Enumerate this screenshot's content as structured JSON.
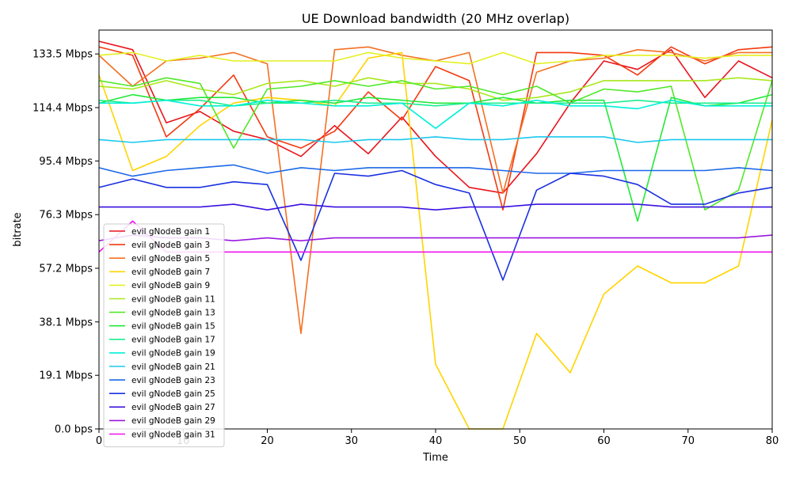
{
  "chart_data": {
    "type": "line",
    "title": "UE Download bandwidth (20 MHz overlap)",
    "xlabel": "Time",
    "ylabel": "bitrate",
    "xlim": [
      0,
      80
    ],
    "ylim": [
      0,
      142
    ],
    "x_ticks": [
      0,
      10,
      20,
      30,
      40,
      50,
      60,
      70,
      80
    ],
    "y_ticks": [
      {
        "value": 0.0,
        "label": "0.0 bps"
      },
      {
        "value": 19.1,
        "label": "19.1 Mbps"
      },
      {
        "value": 38.1,
        "label": "38.1 Mbps"
      },
      {
        "value": 57.2,
        "label": "57.2 Mbps"
      },
      {
        "value": 76.3,
        "label": "76.3 Mbps"
      },
      {
        "value": 95.4,
        "label": "95.4 Mbps"
      },
      {
        "value": 114.4,
        "label": "114.4 Mbps"
      },
      {
        "value": 133.5,
        "label": "133.5 Mbps"
      }
    ],
    "grid": false,
    "legend_position": "lower-left",
    "x": [
      0,
      4,
      8,
      12,
      16,
      20,
      24,
      28,
      32,
      36,
      40,
      44,
      48,
      52,
      56,
      60,
      64,
      68,
      72,
      76,
      80
    ],
    "series": [
      {
        "name": "evil gNodeB gain 1",
        "color": "#e8141c",
        "values": [
          138,
          135,
          109,
          113,
          106,
          103,
          97,
          108,
          98,
          111,
          97,
          86,
          84,
          98,
          116,
          131,
          128,
          135,
          118,
          131,
          125
        ]
      },
      {
        "name": "evil gNodeB gain 3",
        "color": "#f23a10",
        "values": [
          136,
          133,
          104,
          114,
          126,
          104,
          100,
          106,
          120,
          110,
          129,
          124,
          78,
          134,
          134,
          133,
          126,
          136,
          130,
          135,
          136
        ]
      },
      {
        "name": "evil gNodeB gain 5",
        "color": "#f47020",
        "values": [
          133,
          122,
          131,
          132,
          134,
          130,
          34,
          135,
          136,
          133,
          131,
          134,
          84,
          127,
          131,
          132,
          135,
          134,
          131,
          134,
          134
        ]
      },
      {
        "name": "evil gNodeB gain 7",
        "color": "#ffd400",
        "values": [
          126,
          92,
          97,
          108,
          116,
          118,
          117,
          115,
          132,
          134,
          23,
          0,
          0,
          34,
          20,
          48,
          58,
          52,
          52,
          58,
          110
        ]
      },
      {
        "name": "evil gNodeB gain 9",
        "color": "#e4f020",
        "values": [
          133,
          134,
          131,
          133,
          131,
          131,
          131,
          131,
          134,
          132,
          131,
          130,
          134,
          130,
          131,
          133,
          133,
          133,
          132,
          133,
          133
        ]
      },
      {
        "name": "evil gNodeB gain 11",
        "color": "#a8e81a",
        "values": [
          122,
          121,
          124,
          121,
          119,
          123,
          124,
          122,
          125,
          123,
          123,
          121,
          117,
          118,
          120,
          124,
          124,
          124,
          124,
          125,
          124
        ]
      },
      {
        "name": "evil gNodeB gain 13",
        "color": "#50e828",
        "values": [
          124,
          122,
          125,
          123,
          100,
          121,
          122,
          124,
          122,
          124,
          121,
          122,
          119,
          122,
          116,
          121,
          120,
          122,
          78,
          85,
          124
        ]
      },
      {
        "name": "evil gNodeB gain 15",
        "color": "#22e83a",
        "values": [
          116,
          119,
          117,
          118,
          118,
          116,
          117,
          116,
          118,
          117,
          116,
          116,
          118,
          116,
          117,
          117,
          74,
          118,
          115,
          116,
          119
        ]
      },
      {
        "name": "evil gNodeB gain 17",
        "color": "#1aee90",
        "values": [
          117,
          116,
          117,
          117,
          115,
          116,
          116,
          117,
          116,
          116,
          115,
          116,
          116,
          116,
          116,
          116,
          117,
          116,
          116,
          116,
          116
        ]
      },
      {
        "name": "evil gNodeB gain 19",
        "color": "#00f0d8",
        "values": [
          116,
          116,
          117,
          115,
          115,
          117,
          116,
          115,
          115,
          116,
          107,
          116,
          115,
          117,
          115,
          115,
          114,
          117,
          115,
          115,
          115
        ]
      },
      {
        "name": "evil gNodeB gain 21",
        "color": "#1ac8ee",
        "values": [
          103,
          102,
          103,
          103,
          103,
          103,
          103,
          102,
          103,
          103,
          104,
          103,
          103,
          104,
          104,
          104,
          102,
          103,
          103,
          103,
          103
        ]
      },
      {
        "name": "evil gNodeB gain 23",
        "color": "#1a68e8",
        "values": [
          93,
          90,
          92,
          93,
          94,
          91,
          93,
          92,
          93,
          93,
          93,
          93,
          92,
          91,
          91,
          92,
          92,
          92,
          92,
          93,
          92
        ]
      },
      {
        "name": "evil gNodeB gain 25",
        "color": "#1a30e0",
        "values": [
          86,
          89,
          86,
          86,
          88,
          87,
          60,
          91,
          90,
          92,
          87,
          84,
          53,
          85,
          91,
          90,
          87,
          80,
          80,
          84,
          86
        ]
      },
      {
        "name": "evil gNodeB gain 27",
        "color": "#3a10e0",
        "values": [
          79,
          79,
          79,
          79,
          80,
          78,
          80,
          79,
          79,
          79,
          78,
          79,
          79,
          80,
          80,
          80,
          80,
          79,
          79,
          79,
          79
        ]
      },
      {
        "name": "evil gNodeB gain 29",
        "color": "#9a18e0",
        "values": [
          67,
          69,
          68,
          68,
          67,
          68,
          67,
          68,
          68,
          68,
          68,
          68,
          68,
          68,
          68,
          68,
          68,
          68,
          68,
          68,
          69
        ]
      },
      {
        "name": "evil gNodeB gain 31",
        "color": "#ee10ee",
        "values": [
          63,
          74,
          63,
          63,
          63,
          63,
          63,
          63,
          63,
          63,
          63,
          63,
          63,
          63,
          63,
          63,
          63,
          63,
          63,
          63,
          63
        ]
      }
    ]
  }
}
